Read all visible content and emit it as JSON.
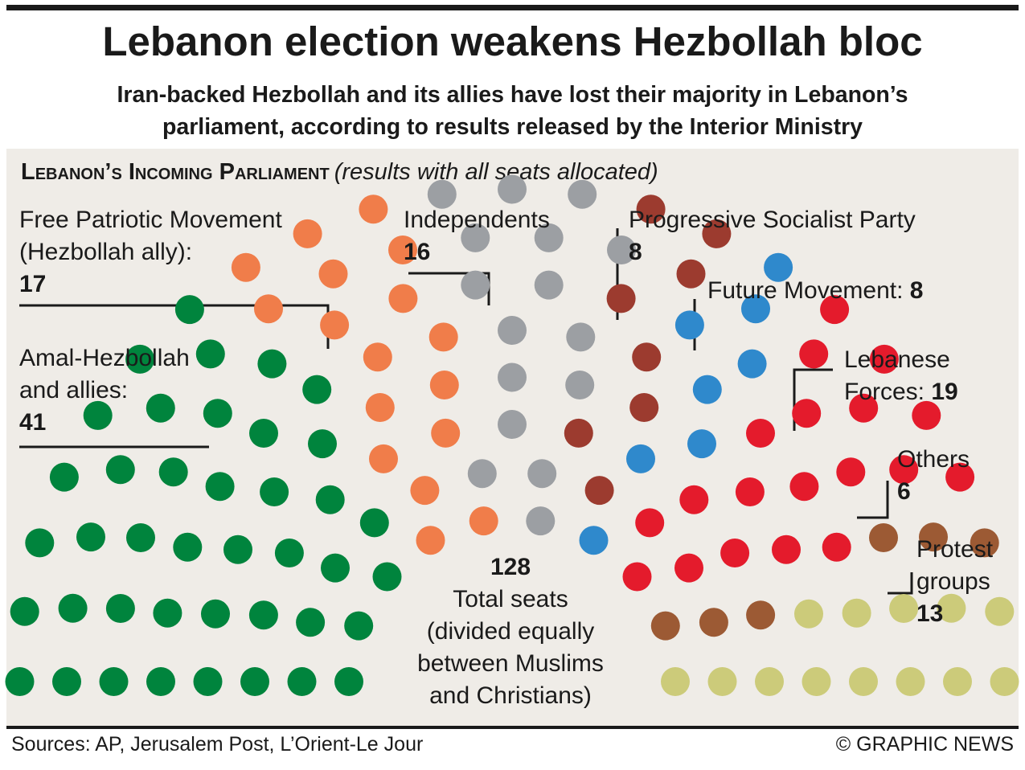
{
  "header": {
    "title": "Lebanon election weakens Hezbollah bloc",
    "subtitle_line1": "Iran-backed Hezbollah and its allies have lost their majority in Lebanon’s",
    "subtitle_line2": "parliament, according to results released by the Interior Ministry"
  },
  "section": {
    "title": "Lebanon’s Incoming Parliament",
    "note": "(results with all seats allocated)"
  },
  "center": {
    "total": "128",
    "line1": "Total seats",
    "line2": "(divided equally",
    "line3": "between Muslims",
    "line4": "and Christians)"
  },
  "labels": {
    "amal_line1": "Amal-Hezbollah",
    "amal_line2": "and allies:",
    "fpm_line1": "Free Patriotic Movement",
    "fpm_line2": "(Hezbollah ally):",
    "ind_line1": "Independents",
    "psp_line1": "Progressive Socialist Party",
    "future_line1": "Future Movement:",
    "lf_line1": "Lebanese",
    "lf_line2": "Forces:",
    "others_line1": "Others",
    "protest_line1": "Protest",
    "protest_line2": "groups"
  },
  "chart_data": {
    "type": "parliament",
    "total_seats": 128,
    "parties": [
      {
        "name": "Amal-Hezbollah and allies",
        "seats": 41,
        "color": "#00843d"
      },
      {
        "name": "Free Patriotic Movement (Hezbollah ally)",
        "seats": 17,
        "color": "#f07d4a"
      },
      {
        "name": "Independents",
        "seats": 16,
        "color": "#9c9fa3"
      },
      {
        "name": "Progressive Socialist Party",
        "seats": 8,
        "color": "#9c3b2f"
      },
      {
        "name": "Future Movement",
        "seats": 8,
        "color": "#2f89cc"
      },
      {
        "name": "Lebanese Forces",
        "seats": 19,
        "color": "#e41b2c"
      },
      {
        "name": "Others",
        "seats": 6,
        "color": "#9c5a34"
      },
      {
        "name": "Protest groups",
        "seats": 13,
        "color": "#cccb7a"
      }
    ]
  },
  "footer": {
    "sources": "Sources: AP, Jerusalem Post, L’Orient-Le Jour",
    "credit": "© GRAPHIC NEWS"
  }
}
